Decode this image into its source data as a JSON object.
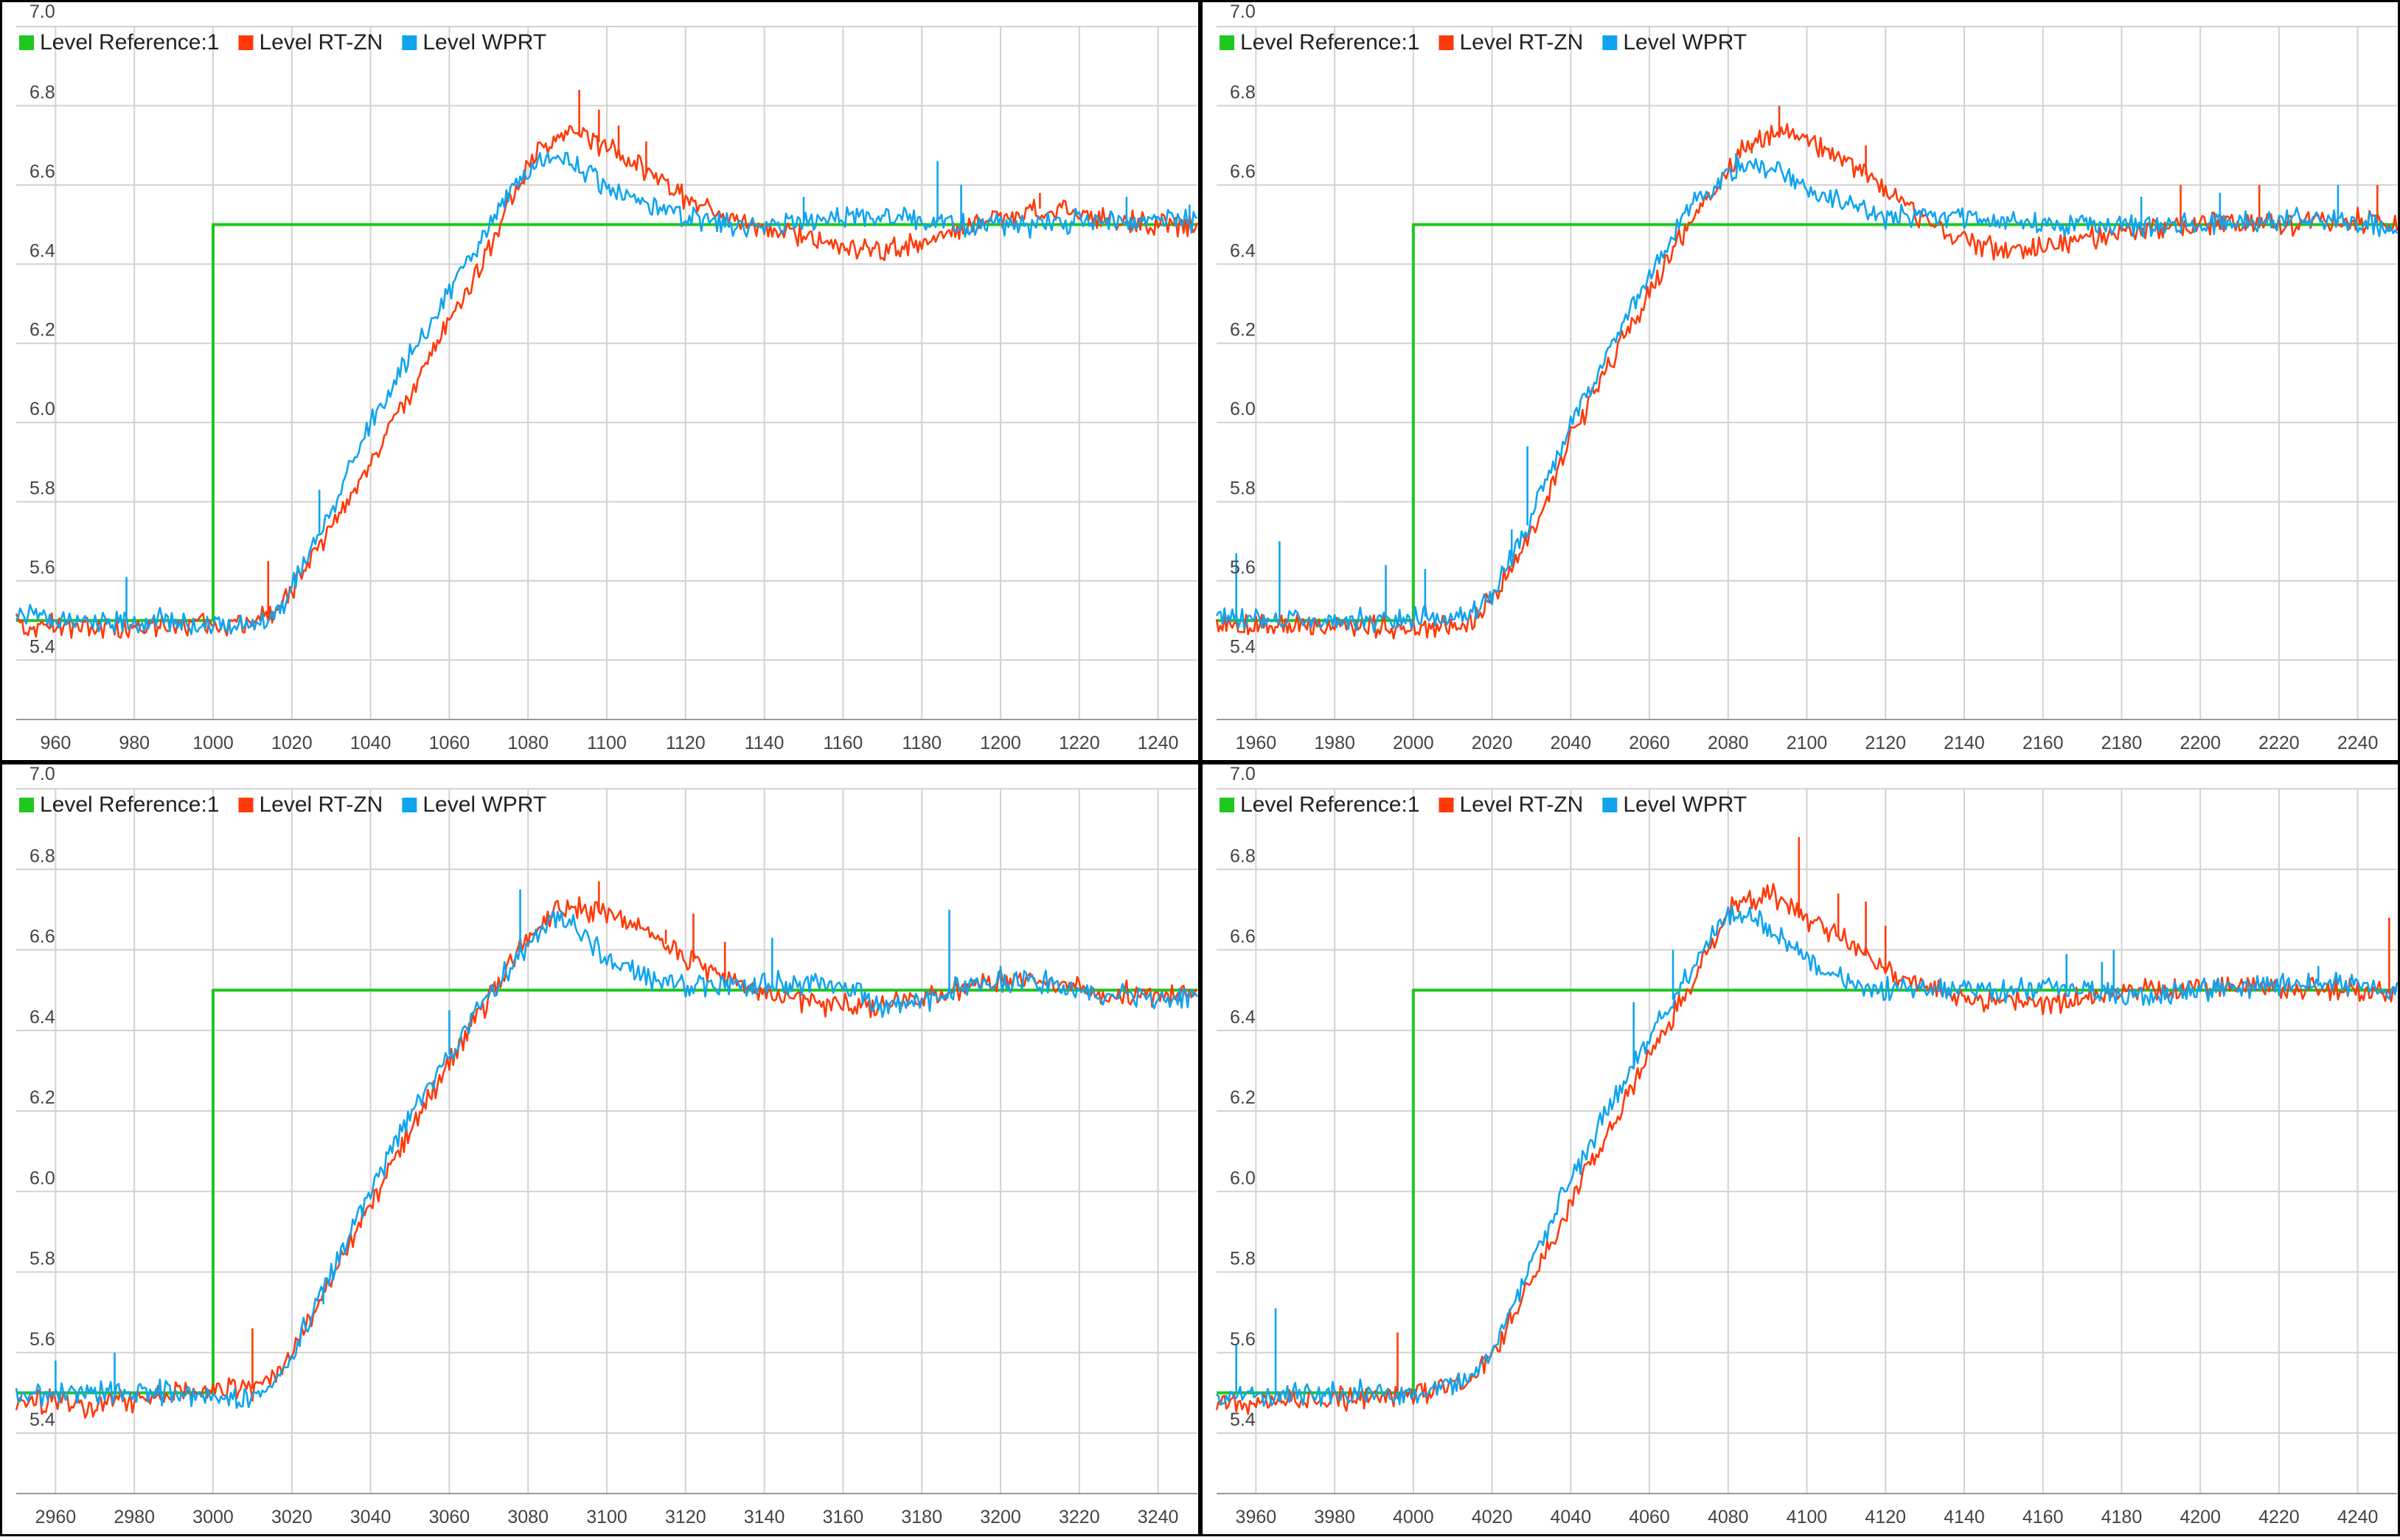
{
  "colors": {
    "reference": "#1ec81e",
    "rtzn": "#ff3a0a",
    "wprt": "#10a4ee",
    "grid": "#d2d2d2",
    "axis": "#000000",
    "text": "#444444"
  },
  "chart_data": [
    {
      "type": "line",
      "title": "",
      "xlabel": "",
      "ylabel": "",
      "grid": true,
      "legend": "top-left",
      "xlim": [
        950,
        1250
      ],
      "ylim": [
        5.25,
        7.0
      ],
      "xticks": [
        960,
        980,
        1000,
        1020,
        1040,
        1060,
        1080,
        1100,
        1120,
        1140,
        1160,
        1180,
        1200,
        1220,
        1240
      ],
      "yticks": [
        5.4,
        5.6,
        5.8,
        6.0,
        6.2,
        6.4,
        6.6,
        6.8,
        7.0
      ],
      "series": [
        {
          "name": "Level Reference:1",
          "color_key": "reference",
          "x": [
            950,
            1000,
            1000,
            1250
          ],
          "y": [
            5.5,
            5.5,
            6.5,
            6.5
          ]
        },
        {
          "name": "Level RT-ZN",
          "color_key": "rtzn",
          "x": [
            950,
            970,
            990,
            1000,
            1010,
            1015,
            1020,
            1030,
            1040,
            1050,
            1060,
            1070,
            1075,
            1080,
            1085,
            1090,
            1095,
            1100,
            1110,
            1120,
            1130,
            1140,
            1150,
            1160,
            1170,
            1180,
            1190,
            1200,
            1210,
            1220,
            1230,
            1240,
            1250
          ],
          "y": [
            5.49,
            5.48,
            5.49,
            5.49,
            5.5,
            5.52,
            5.58,
            5.73,
            5.9,
            6.07,
            6.25,
            6.44,
            6.55,
            6.65,
            6.71,
            6.73,
            6.72,
            6.7,
            6.63,
            6.57,
            6.52,
            6.49,
            6.47,
            6.44,
            6.43,
            6.45,
            6.49,
            6.52,
            6.54,
            6.53,
            6.51,
            6.5,
            6.5
          ],
          "spikes": [
            [
              1014,
              5.65
            ],
            [
              1093,
              6.84
            ],
            [
              1098,
              6.79
            ],
            [
              1103,
              6.75
            ],
            [
              1110,
              6.71
            ],
            [
              1210,
              6.58
            ]
          ]
        },
        {
          "name": "Level WPRT",
          "color_key": "wprt",
          "x": [
            950,
            970,
            990,
            1000,
            1005,
            1010,
            1015,
            1020,
            1030,
            1040,
            1050,
            1060,
            1070,
            1075,
            1080,
            1085,
            1090,
            1095,
            1100,
            1110,
            1120,
            1130,
            1140,
            1150,
            1160,
            1170,
            1180,
            1190,
            1200,
            1210,
            1220,
            1230,
            1240,
            1250
          ],
          "y": [
            5.51,
            5.5,
            5.5,
            5.49,
            5.48,
            5.48,
            5.5,
            5.58,
            5.78,
            6.0,
            6.17,
            6.33,
            6.49,
            6.58,
            6.64,
            6.67,
            6.66,
            6.63,
            6.6,
            6.55,
            6.52,
            6.5,
            6.5,
            6.51,
            6.52,
            6.52,
            6.51,
            6.5,
            6.5,
            6.5,
            6.51,
            6.51,
            6.51,
            6.51
          ],
          "spikes": [
            [
              978,
              5.61
            ],
            [
              1027,
              5.83
            ],
            [
              1150,
              6.57
            ],
            [
              1184,
              6.66
            ],
            [
              1190,
              6.6
            ],
            [
              1232,
              6.57
            ],
            [
              1248,
              6.55
            ]
          ]
        }
      ]
    },
    {
      "type": "line",
      "title": "",
      "xlabel": "",
      "ylabel": "",
      "grid": true,
      "legend": "top-left",
      "xlim": [
        1950,
        2250
      ],
      "ylim": [
        5.25,
        7.0
      ],
      "xticks": [
        1960,
        1980,
        2000,
        2020,
        2040,
        2060,
        2080,
        2100,
        2120,
        2140,
        2160,
        2180,
        2200,
        2220,
        2240
      ],
      "yticks": [
        5.4,
        5.6,
        5.8,
        6.0,
        6.2,
        6.4,
        6.6,
        6.8,
        7.0
      ],
      "series": [
        {
          "name": "Level Reference:1",
          "color_key": "reference",
          "x": [
            1950,
            2000,
            2000,
            2250
          ],
          "y": [
            5.5,
            5.5,
            6.5,
            6.5
          ]
        },
        {
          "name": "Level RT-ZN",
          "color_key": "rtzn",
          "x": [
            1950,
            1970,
            1990,
            2000,
            2010,
            2015,
            2020,
            2030,
            2040,
            2050,
            2060,
            2070,
            2080,
            2085,
            2090,
            2095,
            2100,
            2110,
            2120,
            2130,
            2140,
            2150,
            2160,
            2170,
            2180,
            2190,
            2200,
            2210,
            2220,
            2230,
            2240,
            2250
          ],
          "y": [
            5.49,
            5.49,
            5.49,
            5.48,
            5.48,
            5.5,
            5.55,
            5.72,
            5.96,
            6.15,
            6.33,
            6.5,
            6.64,
            6.7,
            6.73,
            6.73,
            6.71,
            6.66,
            6.59,
            6.51,
            6.46,
            6.43,
            6.44,
            6.46,
            6.48,
            6.49,
            6.5,
            6.5,
            6.5,
            6.51,
            6.51,
            6.5
          ],
          "spikes": [
            [
              2093,
              6.8
            ],
            [
              2086,
              6.68
            ],
            [
              2115,
              6.7
            ],
            [
              2195,
              6.6
            ],
            [
              2215,
              6.6
            ],
            [
              2245,
              6.6
            ]
          ]
        },
        {
          "name": "Level WPRT",
          "color_key": "wprt",
          "x": [
            1950,
            1970,
            1990,
            2000,
            2010,
            2015,
            2020,
            2030,
            2040,
            2050,
            2060,
            2070,
            2080,
            2085,
            2090,
            2095,
            2100,
            2110,
            2120,
            2130,
            2140,
            2150,
            2160,
            2170,
            2180,
            2190,
            2200,
            2210,
            2220,
            2230,
            2240,
            2250
          ],
          "y": [
            5.51,
            5.5,
            5.5,
            5.51,
            5.51,
            5.52,
            5.56,
            5.76,
            6.0,
            6.19,
            6.37,
            6.54,
            6.63,
            6.65,
            6.65,
            6.62,
            6.59,
            6.55,
            6.52,
            6.52,
            6.52,
            6.51,
            6.5,
            6.5,
            6.5,
            6.49,
            6.5,
            6.5,
            6.51,
            6.51,
            6.5,
            6.49
          ],
          "spikes": [
            [
              1955,
              5.67
            ],
            [
              1966,
              5.7
            ],
            [
              1993,
              5.64
            ],
            [
              2003,
              5.63
            ],
            [
              2029,
              5.94
            ],
            [
              2025,
              5.73
            ],
            [
              2082,
              6.68
            ],
            [
              2185,
              6.57
            ],
            [
              2205,
              6.58
            ],
            [
              2235,
              6.6
            ]
          ]
        }
      ]
    },
    {
      "type": "line",
      "title": "",
      "xlabel": "",
      "ylabel": "",
      "grid": true,
      "legend": "top-left",
      "xlim": [
        2950,
        3250
      ],
      "ylim": [
        5.25,
        7.0
      ],
      "xticks": [
        2960,
        2980,
        3000,
        3020,
        3040,
        3060,
        3080,
        3100,
        3120,
        3140,
        3160,
        3180,
        3200,
        3220,
        3240
      ],
      "yticks": [
        5.4,
        5.6,
        5.8,
        6.0,
        6.2,
        6.4,
        6.6,
        6.8,
        7.0
      ],
      "series": [
        {
          "name": "Level Reference:1",
          "color_key": "reference",
          "x": [
            2950,
            3000,
            3000,
            3250
          ],
          "y": [
            5.5,
            5.5,
            6.5,
            6.5
          ]
        },
        {
          "name": "Level RT-ZN",
          "color_key": "rtzn",
          "x": [
            2950,
            2970,
            2990,
            3000,
            3010,
            3015,
            3020,
            3030,
            3040,
            3050,
            3060,
            3070,
            3080,
            3085,
            3090,
            3095,
            3100,
            3110,
            3120,
            3130,
            3140,
            3150,
            3160,
            3170,
            3180,
            3190,
            3200,
            3210,
            3220,
            3230,
            3240,
            3250
          ],
          "y": [
            5.48,
            5.47,
            5.5,
            5.51,
            5.51,
            5.53,
            5.6,
            5.78,
            5.97,
            6.15,
            6.32,
            6.48,
            6.63,
            6.69,
            6.71,
            6.7,
            6.69,
            6.65,
            6.58,
            6.53,
            6.49,
            6.47,
            6.46,
            6.46,
            6.48,
            6.5,
            6.52,
            6.53,
            6.51,
            6.49,
            6.49,
            6.49
          ],
          "spikes": [
            [
              3010,
              5.66
            ],
            [
              3098,
              6.77
            ],
            [
              3115,
              6.65
            ],
            [
              3122,
              6.69
            ],
            [
              3130,
              6.62
            ]
          ]
        },
        {
          "name": "Level WPRT",
          "color_key": "wprt",
          "x": [
            2950,
            2970,
            2990,
            3000,
            3010,
            3015,
            3020,
            3030,
            3040,
            3050,
            3060,
            3070,
            3080,
            3085,
            3090,
            3095,
            3100,
            3110,
            3120,
            3130,
            3140,
            3150,
            3160,
            3170,
            3180,
            3190,
            3200,
            3210,
            3220,
            3230,
            3240,
            3250
          ],
          "y": [
            5.5,
            5.5,
            5.5,
            5.49,
            5.49,
            5.51,
            5.59,
            5.8,
            6.0,
            6.2,
            6.34,
            6.49,
            6.62,
            6.67,
            6.67,
            6.63,
            6.58,
            6.53,
            6.51,
            6.51,
            6.51,
            6.52,
            6.51,
            6.46,
            6.47,
            6.51,
            6.53,
            6.52,
            6.5,
            6.49,
            6.48,
            6.49
          ],
          "spikes": [
            [
              2960,
              5.58
            ],
            [
              2975,
              5.6
            ],
            [
              3028,
              5.72
            ],
            [
              3060,
              6.45
            ],
            [
              3078,
              6.75
            ],
            [
              3142,
              6.63
            ],
            [
              3187,
              6.7
            ],
            [
              3200,
              6.56
            ]
          ]
        }
      ]
    },
    {
      "type": "line",
      "title": "",
      "xlabel": "",
      "ylabel": "",
      "grid": true,
      "legend": "top-left",
      "xlim": [
        3950,
        4250
      ],
      "ylim": [
        5.25,
        7.0
      ],
      "xticks": [
        3960,
        3980,
        4000,
        4020,
        4040,
        4060,
        4080,
        4100,
        4120,
        4140,
        4160,
        4180,
        4200,
        4220,
        4240
      ],
      "yticks": [
        5.4,
        5.6,
        5.8,
        6.0,
        6.2,
        6.4,
        6.6,
        6.8,
        7.0
      ],
      "series": [
        {
          "name": "Level Reference:1",
          "color_key": "reference",
          "x": [
            3950,
            4000,
            4000,
            4250
          ],
          "y": [
            5.5,
            5.5,
            6.5,
            6.5
          ]
        },
        {
          "name": "Level RT-ZN",
          "color_key": "rtzn",
          "x": [
            3950,
            3970,
            3990,
            4000,
            4010,
            4015,
            4020,
            4030,
            4040,
            4050,
            4060,
            4070,
            4075,
            4080,
            4085,
            4090,
            4095,
            4100,
            4110,
            4120,
            4130,
            4140,
            4150,
            4160,
            4170,
            4180,
            4190,
            4200,
            4210,
            4220,
            4230,
            4240,
            4250
          ],
          "y": [
            5.47,
            5.48,
            5.49,
            5.5,
            5.52,
            5.54,
            5.59,
            5.78,
            5.97,
            6.16,
            6.34,
            6.5,
            6.6,
            6.69,
            6.73,
            6.74,
            6.72,
            6.68,
            6.62,
            6.55,
            6.51,
            6.48,
            6.47,
            6.47,
            6.48,
            6.49,
            6.5,
            6.51,
            6.51,
            6.51,
            6.5,
            6.5,
            6.49
          ],
          "spikes": [
            [
              3996,
              5.65
            ],
            [
              4098,
              6.88
            ],
            [
              4108,
              6.74
            ],
            [
              4115,
              6.72
            ],
            [
              4120,
              6.66
            ],
            [
              4248,
              6.68
            ]
          ]
        },
        {
          "name": "Level WPRT",
          "color_key": "wprt",
          "x": [
            3950,
            3970,
            3990,
            4000,
            4010,
            4015,
            4020,
            4030,
            4040,
            4050,
            4060,
            4070,
            4075,
            4080,
            4085,
            4090,
            4095,
            4100,
            4110,
            4120,
            4130,
            4140,
            4150,
            4160,
            4170,
            4180,
            4190,
            4200,
            4210,
            4220,
            4230,
            4240,
            4250
          ],
          "y": [
            5.5,
            5.5,
            5.5,
            5.5,
            5.52,
            5.54,
            5.6,
            5.82,
            6.03,
            6.21,
            6.38,
            6.54,
            6.63,
            6.68,
            6.69,
            6.66,
            6.62,
            6.58,
            6.52,
            6.5,
            6.5,
            6.5,
            6.5,
            6.51,
            6.5,
            6.49,
            6.49,
            6.5,
            6.51,
            6.52,
            6.52,
            6.51,
            6.5
          ],
          "spikes": [
            [
              3955,
              5.62
            ],
            [
              3965,
              5.71
            ],
            [
              4056,
              6.47
            ],
            [
              4066,
              6.6
            ],
            [
              4166,
              6.59
            ],
            [
              4175,
              6.57
            ],
            [
              4178,
              6.6
            ],
            [
              4230,
              6.56
            ]
          ]
        }
      ]
    }
  ]
}
